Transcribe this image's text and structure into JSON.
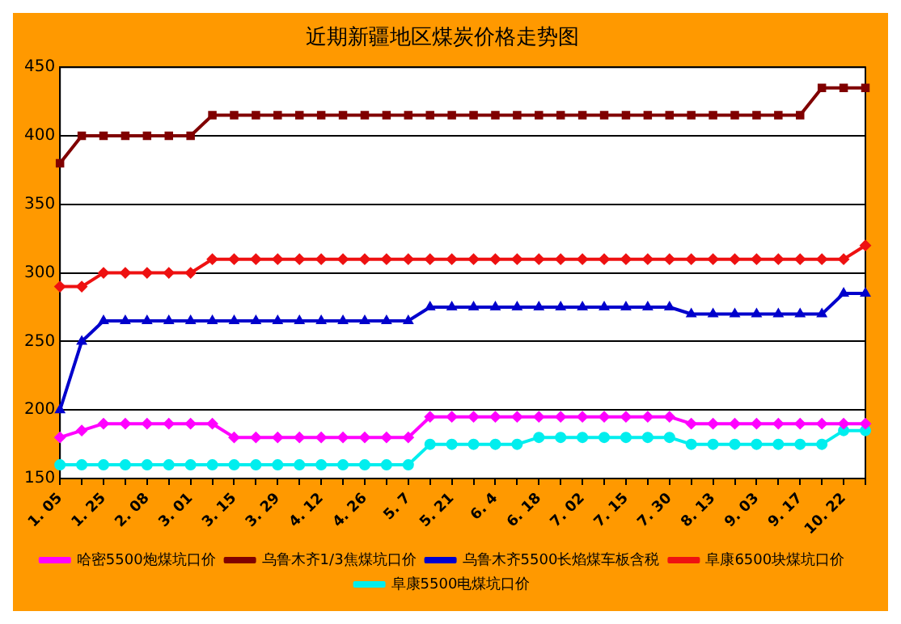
{
  "chart_data": {
    "type": "line",
    "title": "近期新疆地区煤炭价格走势图",
    "categories": [
      "1. 05",
      null,
      "1. 25",
      null,
      "2. 08",
      null,
      "3. 01",
      null,
      "3. 15",
      null,
      "3. 29",
      null,
      "4. 12",
      null,
      "4. 26",
      null,
      "5. 7",
      null,
      "5. 21",
      null,
      "6. 4",
      null,
      "6. 18",
      null,
      "7. 02",
      null,
      "7. 15",
      null,
      "7. 30",
      null,
      "8. 13",
      null,
      "9. 03",
      null,
      "9. 17",
      null,
      "10. 22",
      null
    ],
    "series": [
      {
        "name": "哈密5500炮煤坑口价",
        "color": "#ff00ff",
        "marker": "diamond",
        "values": [
          180,
          185,
          190,
          190,
          190,
          190,
          190,
          190,
          180,
          180,
          180,
          180,
          180,
          180,
          180,
          180,
          180,
          195,
          195,
          195,
          195,
          195,
          195,
          195,
          195,
          195,
          195,
          195,
          195,
          190,
          190,
          190,
          190,
          190,
          190,
          190,
          190,
          190
        ]
      },
      {
        "name": "乌鲁木齐1/3焦煤坑口价",
        "color": "#800000",
        "marker": "square",
        "values": [
          380,
          400,
          400,
          400,
          400,
          400,
          400,
          415,
          415,
          415,
          415,
          415,
          415,
          415,
          415,
          415,
          415,
          415,
          415,
          415,
          415,
          415,
          415,
          415,
          415,
          415,
          415,
          415,
          415,
          415,
          415,
          415,
          415,
          415,
          415,
          435,
          435,
          435
        ]
      },
      {
        "name": "乌鲁木齐5500长焰煤车板含税",
        "color": "#0000cc",
        "marker": "triangle",
        "values": [
          200,
          250,
          265,
          265,
          265,
          265,
          265,
          265,
          265,
          265,
          265,
          265,
          265,
          265,
          265,
          265,
          265,
          275,
          275,
          275,
          275,
          275,
          275,
          275,
          275,
          275,
          275,
          275,
          275,
          270,
          270,
          270,
          270,
          270,
          270,
          270,
          285,
          285
        ]
      },
      {
        "name": "阜康6500块煤坑口价",
        "color": "#ee1111",
        "marker": "diamond",
        "values": [
          290,
          290,
          300,
          300,
          300,
          300,
          300,
          310,
          310,
          310,
          310,
          310,
          310,
          310,
          310,
          310,
          310,
          310,
          310,
          310,
          310,
          310,
          310,
          310,
          310,
          310,
          310,
          310,
          310,
          310,
          310,
          310,
          310,
          310,
          310,
          310,
          310,
          320
        ]
      },
      {
        "name": "阜康5500电煤坑口价",
        "color": "#00eeee",
        "marker": "circle",
        "values": [
          160,
          160,
          160,
          160,
          160,
          160,
          160,
          160,
          160,
          160,
          160,
          160,
          160,
          160,
          160,
          160,
          160,
          175,
          175,
          175,
          175,
          175,
          180,
          180,
          180,
          180,
          180,
          180,
          180,
          175,
          175,
          175,
          175,
          175,
          175,
          175,
          185,
          185
        ]
      }
    ],
    "ylim": [
      150,
      450
    ],
    "yticks": [
      150,
      200,
      250,
      300,
      350,
      400,
      450
    ],
    "grid": "y",
    "legend": "bottom"
  }
}
